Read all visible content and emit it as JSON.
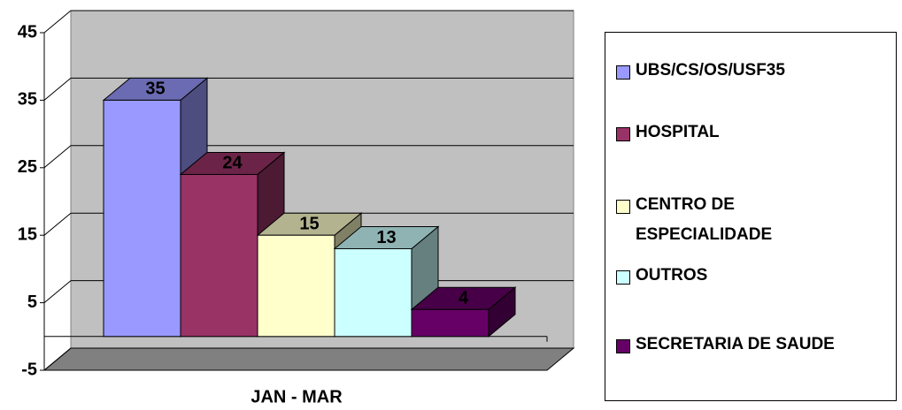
{
  "chart_data": {
    "type": "bar3d",
    "categories": [
      "JAN - MAR"
    ],
    "series": [
      {
        "name": "UBS/CS/OS/USF35",
        "color": "#9999ff",
        "values": [
          35
        ]
      },
      {
        "name": "HOSPITAL",
        "color": "#993366",
        "values": [
          24
        ]
      },
      {
        "name": "CENTRO DE ESPECIALIDADE",
        "color": "#ffffcc",
        "values": [
          15
        ]
      },
      {
        "name": "OUTROS",
        "color": "#ccffff",
        "values": [
          13
        ]
      },
      {
        "name": "SECRETARIA DE SAUDE",
        "color": "#660066",
        "values": [
          4
        ]
      }
    ],
    "ylim": [
      -5,
      45
    ],
    "yticks": [
      -5,
      5,
      15,
      25,
      35,
      45
    ],
    "grid": true,
    "legend": "right"
  }
}
